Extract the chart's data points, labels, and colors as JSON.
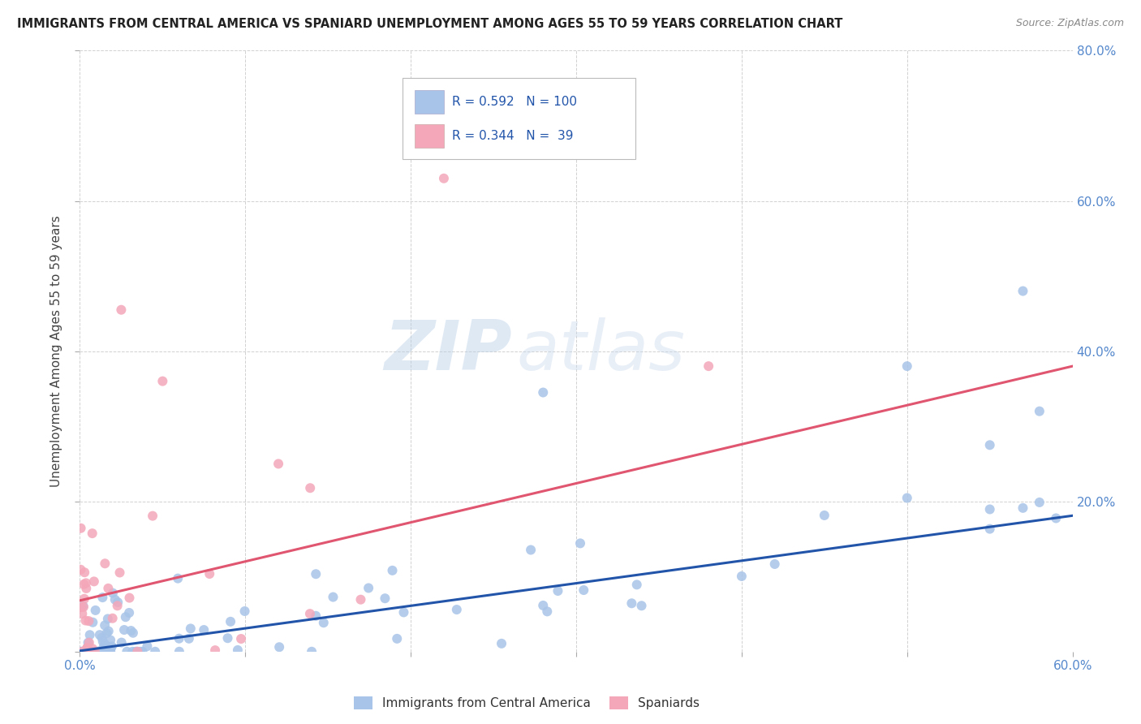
{
  "title": "IMMIGRANTS FROM CENTRAL AMERICA VS SPANIARD UNEMPLOYMENT AMONG AGES 55 TO 59 YEARS CORRELATION CHART",
  "source": "Source: ZipAtlas.com",
  "ylabel": "Unemployment Among Ages 55 to 59 years",
  "xlim": [
    0.0,
    0.6
  ],
  "ylim": [
    0.0,
    0.8
  ],
  "xtick_positions": [
    0.0,
    0.1,
    0.2,
    0.3,
    0.4,
    0.5,
    0.6
  ],
  "xtick_labels": [
    "0.0%",
    "",
    "",
    "",
    "",
    "",
    "60.0%"
  ],
  "ytick_positions": [
    0.0,
    0.2,
    0.4,
    0.6,
    0.8
  ],
  "ytick_labels_right": [
    "",
    "20.0%",
    "40.0%",
    "60.0%",
    "80.0%"
  ],
  "blue_color": "#a8c4e8",
  "pink_color": "#f4a7b9",
  "blue_line_color": "#2255aa",
  "pink_line_color": "#e05570",
  "R_blue": 0.592,
  "N_blue": 100,
  "R_pink": 0.344,
  "N_pink": 39,
  "legend_label_blue": "Immigrants from Central America",
  "legend_label_pink": "Spaniards",
  "watermark_zip": "ZIP",
  "watermark_atlas": "atlas",
  "blue_slope": 0.3,
  "blue_intercept": 0.001,
  "pink_slope": 0.52,
  "pink_intercept": 0.068,
  "background_color": "#ffffff",
  "grid_color": "#cccccc",
  "tick_label_color": "#5588cc",
  "ylabel_color": "#444444",
  "title_color": "#222222",
  "source_color": "#888888"
}
